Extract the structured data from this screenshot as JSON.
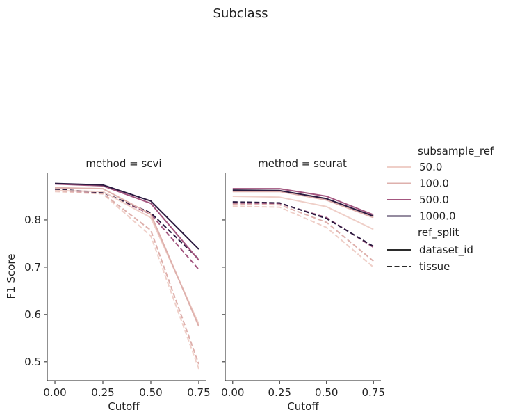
{
  "title": "Subclass",
  "chart_data": [
    {
      "type": "line",
      "title": "method = scvi",
      "xlabel": "Cutoff",
      "ylabel": "F1 Score",
      "x": [
        0.0,
        0.25,
        0.5,
        0.75
      ],
      "xticks": [
        "0.00",
        "0.25",
        "0.50",
        "0.75"
      ],
      "yticks": [
        "0.5",
        "0.6",
        "0.7",
        "0.8"
      ],
      "xlim": [
        -0.04,
        0.79
      ],
      "ylim": [
        0.46,
        0.9
      ],
      "series": [
        {
          "subsample_ref": "50.0",
          "ref_split": "dataset_id",
          "values": [
            0.862,
            0.86,
            0.805,
            0.58
          ]
        },
        {
          "subsample_ref": "100.0",
          "ref_split": "dataset_id",
          "values": [
            0.868,
            0.866,
            0.812,
            0.575
          ]
        },
        {
          "subsample_ref": "500.0",
          "ref_split": "dataset_id",
          "values": [
            0.876,
            0.872,
            0.835,
            0.715
          ]
        },
        {
          "subsample_ref": "1000.0",
          "ref_split": "dataset_id",
          "values": [
            0.877,
            0.874,
            0.84,
            0.738
          ]
        },
        {
          "subsample_ref": "50.0",
          "ref_split": "tissue",
          "values": [
            0.86,
            0.855,
            0.766,
            0.485
          ]
        },
        {
          "subsample_ref": "100.0",
          "ref_split": "tissue",
          "values": [
            0.862,
            0.856,
            0.778,
            0.495
          ]
        },
        {
          "subsample_ref": "500.0",
          "ref_split": "tissue",
          "values": [
            0.863,
            0.858,
            0.812,
            0.695
          ]
        },
        {
          "subsample_ref": "1000.0",
          "ref_split": "tissue",
          "values": [
            0.865,
            0.858,
            0.815,
            0.717
          ]
        }
      ]
    },
    {
      "type": "line",
      "title": "method = seurat",
      "xlabel": "Cutoff",
      "ylabel": "",
      "x": [
        0.0,
        0.25,
        0.5,
        0.75
      ],
      "xticks": [
        "0.00",
        "0.25",
        "0.50",
        "0.75"
      ],
      "yticks": [],
      "xlim": [
        -0.04,
        0.79
      ],
      "ylim": [
        0.46,
        0.9
      ],
      "series": [
        {
          "subsample_ref": "50.0",
          "ref_split": "dataset_id",
          "values": [
            0.85,
            0.848,
            0.828,
            0.78
          ]
        },
        {
          "subsample_ref": "100.0",
          "ref_split": "dataset_id",
          "values": [
            0.86,
            0.86,
            0.842,
            0.805
          ]
        },
        {
          "subsample_ref": "500.0",
          "ref_split": "dataset_id",
          "values": [
            0.866,
            0.866,
            0.85,
            0.811
          ]
        },
        {
          "subsample_ref": "1000.0",
          "ref_split": "dataset_id",
          "values": [
            0.863,
            0.862,
            0.845,
            0.808
          ]
        },
        {
          "subsample_ref": "50.0",
          "ref_split": "tissue",
          "values": [
            0.829,
            0.827,
            0.784,
            0.7
          ]
        },
        {
          "subsample_ref": "100.0",
          "ref_split": "tissue",
          "values": [
            0.833,
            0.832,
            0.795,
            0.713
          ]
        },
        {
          "subsample_ref": "500.0",
          "ref_split": "tissue",
          "values": [
            0.836,
            0.835,
            0.805,
            0.742
          ]
        },
        {
          "subsample_ref": "1000.0",
          "ref_split": "tissue",
          "values": [
            0.838,
            0.836,
            0.803,
            0.744
          ]
        }
      ]
    }
  ],
  "legend": {
    "hue_title": "subsample_ref",
    "hue_items": [
      {
        "label": "50.0",
        "color": "#efcfc8"
      },
      {
        "label": "100.0",
        "color": "#deb0ac"
      },
      {
        "label": "500.0",
        "color": "#a3567f"
      },
      {
        "label": "1000.0",
        "color": "#2b1a40"
      }
    ],
    "style_title": "ref_split",
    "style_items": [
      {
        "label": "dataset_id",
        "dash": "solid"
      },
      {
        "label": "tissue",
        "dash": "dashed"
      }
    ]
  }
}
